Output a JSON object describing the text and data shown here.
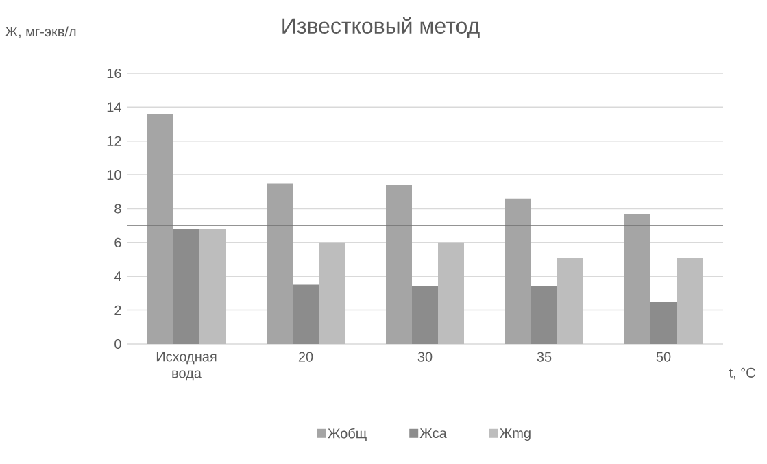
{
  "chart_data": {
    "type": "bar",
    "title": "Известковый метод",
    "ylabel": "Ж, мг-экв/л",
    "xlabel": "t, °C",
    "categories": [
      "Исходная вода",
      "20",
      "30",
      "35",
      "50"
    ],
    "series": [
      {
        "name": "Жобщ",
        "color": "#a5a5a5",
        "values": [
          13.6,
          9.5,
          9.4,
          8.6,
          7.7
        ]
      },
      {
        "name": "Жса",
        "color": "#8c8c8c",
        "values": [
          6.8,
          3.5,
          3.4,
          3.4,
          2.5
        ]
      },
      {
        "name": "Жmg",
        "color": "#bdbdbd",
        "values": [
          6.8,
          6.0,
          6.0,
          5.1,
          5.1
        ]
      }
    ],
    "ylim": [
      0,
      16
    ],
    "yticks": [
      0,
      2,
      4,
      6,
      8,
      10,
      12,
      14,
      16
    ],
    "ref_lines": [
      {
        "axis": "y",
        "value": 7,
        "color": "#707070"
      }
    ],
    "grid": "y",
    "legend": "bottom"
  }
}
